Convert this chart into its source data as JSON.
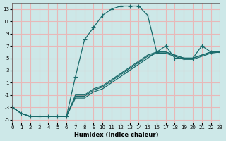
{
  "xlabel": "Humidex (Indice chaleur)",
  "bg_color": "#cde8e8",
  "grid_color": "#e8b8b8",
  "line_color": "#1a6b6b",
  "xlim": [
    0,
    23
  ],
  "ylim": [
    -5.5,
    14
  ],
  "yticks": [
    -5,
    -3,
    -1,
    1,
    3,
    5,
    7,
    9,
    11,
    13
  ],
  "xticks": [
    0,
    1,
    2,
    3,
    4,
    5,
    6,
    7,
    8,
    9,
    10,
    11,
    12,
    13,
    14,
    15,
    16,
    17,
    18,
    19,
    20,
    21,
    22,
    23
  ],
  "curve1_x": [
    0,
    1,
    2,
    3,
    4,
    5,
    6,
    7,
    8,
    9,
    10,
    11,
    12,
    13,
    14,
    15,
    16,
    17,
    18,
    19,
    20,
    21,
    22,
    23
  ],
  "curve1_y": [
    -3,
    -4,
    -4.5,
    -4.5,
    -4.5,
    -4.5,
    -4.5,
    2,
    8,
    10,
    12,
    13,
    13.5,
    13.5,
    13.5,
    12,
    6,
    7,
    5,
    5,
    5,
    7,
    6,
    6
  ],
  "curve2_x": [
    0,
    1,
    2,
    3,
    4,
    5,
    6,
    7,
    8,
    9,
    10,
    11,
    12,
    13,
    14,
    15,
    16,
    17,
    18,
    19,
    20,
    21,
    22,
    23
  ],
  "curve2_y": [
    -3,
    -4,
    -4.5,
    -4.5,
    -4.5,
    -4.5,
    -4.5,
    -1.5,
    -1.5,
    -0.5,
    0,
    1,
    2,
    3,
    4,
    5,
    6,
    6,
    5.5,
    5,
    5,
    5.5,
    6,
    6
  ],
  "curve3_x": [
    0,
    1,
    2,
    3,
    4,
    5,
    6,
    7,
    8,
    9,
    10,
    11,
    12,
    13,
    14,
    15,
    16,
    17,
    18,
    19,
    20,
    21,
    22,
    23
  ],
  "curve3_y": [
    -3,
    -4,
    -4.5,
    -4.5,
    -4.5,
    -4.5,
    -4.5,
    -1.0,
    -1.0,
    0,
    0.5,
    1.5,
    2.5,
    3.5,
    4.5,
    5.5,
    6,
    6,
    5.5,
    5,
    5,
    5.5,
    6,
    6
  ],
  "curve4_x": [
    0,
    1,
    2,
    3,
    4,
    5,
    6,
    7,
    8,
    9,
    10,
    11,
    12,
    13,
    14,
    15,
    16,
    17,
    18,
    19,
    20,
    21,
    22,
    23
  ],
  "curve4_y": [
    -3,
    -4,
    -4.5,
    -4.5,
    -4.5,
    -4.5,
    -4.5,
    -1.2,
    -1.2,
    -0.2,
    0.3,
    1.3,
    2.3,
    3.3,
    4.3,
    5.3,
    5.8,
    5.8,
    5.3,
    4.8,
    4.8,
    5.3,
    5.8,
    6
  ]
}
